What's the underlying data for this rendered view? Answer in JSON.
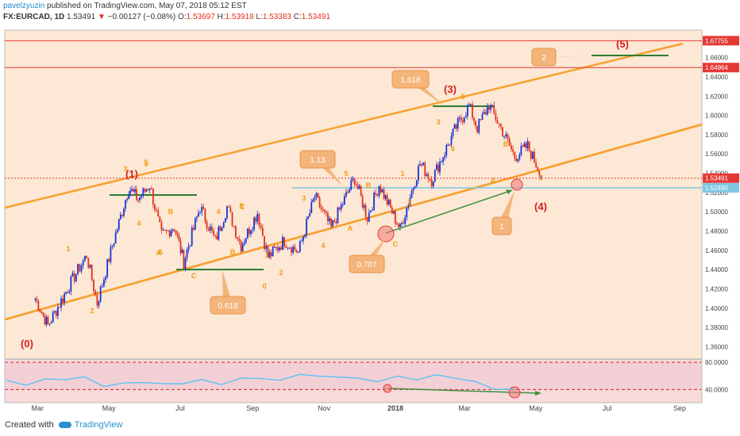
{
  "header": {
    "user": "pavelzyuzin",
    "published": "published on TradingView.com, May 07, 2018 05:12 EST",
    "symbol": "FX:EURCAD, 1D",
    "last": "1.53491",
    "arrow": "▼",
    "change": "−0.00127 (−0.08%)",
    "o_label": "O:",
    "o": "1.53697",
    "h_label": "H:",
    "h": "1.53918",
    "l_label": "L:",
    "l": "1.53383",
    "c_label": "C:",
    "c": "1.53491"
  },
  "footer": {
    "created_with": "Created with",
    "brand": "TradingView"
  },
  "colors": {
    "up": "#1b33d6",
    "down": "#e0301e",
    "channel": "#f7a030",
    "callout": "#f4b47a",
    "wave": "#f39c12",
    "label_red": "#d62020",
    "support": "#2e7d32",
    "level": "#7ec8e3",
    "rsi": "#4fc3f7",
    "bg": "#fce8d4"
  },
  "chart_data": [
    {
      "type": "candlestick",
      "title": "FX:EURCAD, 1D",
      "ylim": [
        1.348,
        1.6885
      ],
      "y_ticks": [
        "1.36000",
        "1.38000",
        "1.40000",
        "1.42000",
        "1.44000",
        "1.46000",
        "1.48000",
        "1.50000",
        "1.52000",
        "1.54000",
        "1.56000",
        "1.58000",
        "1.60000",
        "1.62000",
        "1.64000",
        "1.66000"
      ],
      "x_ticks": [
        "Mar",
        "May",
        "Jul",
        "Sep",
        "Nov",
        "2018",
        "Mar",
        "May",
        "Jul",
        "Sep"
      ],
      "series": [
        {
          "values": [
            [
              "2017-02-27",
              1.41
            ],
            [
              "2017-03-10",
              1.382
            ],
            [
              "2017-03-31",
              1.43
            ],
            [
              "2017-04-12",
              1.455
            ],
            [
              "2017-04-21",
              1.405
            ],
            [
              "2017-05-04",
              1.465
            ],
            [
              "2017-05-18",
              1.525
            ],
            [
              "2017-05-26",
              1.513
            ],
            [
              "2017-06-05",
              1.528
            ],
            [
              "2017-06-15",
              1.475
            ],
            [
              "2017-06-26",
              1.485
            ],
            [
              "2017-07-04",
              1.448
            ],
            [
              "2017-07-18",
              1.505
            ],
            [
              "2017-07-31",
              1.47
            ],
            [
              "2017-08-10",
              1.505
            ],
            [
              "2017-08-22",
              1.465
            ],
            [
              "2017-09-05",
              1.499
            ],
            [
              "2017-09-14",
              1.453
            ],
            [
              "2017-09-28",
              1.47
            ],
            [
              "2017-10-10",
              1.458
            ],
            [
              "2017-10-24",
              1.516
            ],
            [
              "2017-11-07",
              1.483
            ],
            [
              "2017-11-27",
              1.535
            ],
            [
              "2017-12-08",
              1.494
            ],
            [
              "2017-12-18",
              1.528
            ],
            [
              "2018-01-05",
              1.482
            ],
            [
              "2018-01-22",
              1.55
            ],
            [
              "2018-02-01",
              1.533
            ],
            [
              "2018-02-22",
              1.588
            ],
            [
              "2018-03-05",
              1.61
            ],
            [
              "2018-03-12",
              1.587
            ],
            [
              "2018-03-22",
              1.611
            ],
            [
              "2018-04-04",
              1.58
            ],
            [
              "2018-04-13",
              1.557
            ],
            [
              "2018-04-24",
              1.568
            ],
            [
              "2018-05-07",
              1.53491
            ]
          ]
        }
      ],
      "levels": {
        "price_tags": [
          "1.67755",
          "1.64964",
          "1.53491",
          "1.52490"
        ],
        "resistance_lines": [
          1.67755,
          1.64964
        ],
        "current_price_line": 1.53491,
        "horizontal_level": 1.5249
      },
      "wave_labels": [
        "(0)",
        "(1)",
        "(3)",
        "(5)",
        "(4)"
      ],
      "minor_labels": [
        "1",
        "2",
        "3",
        "4",
        "5",
        "3",
        "4",
        "5",
        "A",
        "B",
        "C",
        "A",
        "B",
        "C",
        "1",
        "2",
        "0",
        "3",
        "4",
        "5",
        "A",
        "B",
        "C",
        "1",
        "2",
        "3",
        "4",
        "5",
        "A",
        "B",
        "C"
      ],
      "callouts": [
        "0.618",
        "1.13",
        "0.707",
        "1.618",
        "2",
        "1"
      ]
    },
    {
      "type": "line",
      "title": "RSI",
      "ylim": [
        30,
        80
      ],
      "y_ticks": [
        "80.0000",
        "40.0000"
      ],
      "series": [
        {
          "values": [
            52,
            48,
            54,
            56,
            57,
            46,
            48,
            52,
            47,
            50,
            53,
            49,
            55,
            58,
            52,
            64,
            58,
            60,
            55,
            53,
            58,
            56,
            60,
            58,
            50,
            42,
            39
          ]
        }
      ]
    }
  ]
}
